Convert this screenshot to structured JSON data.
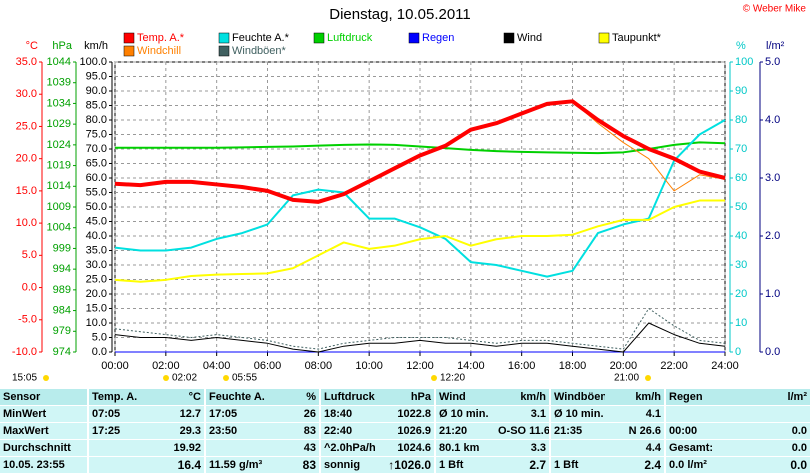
{
  "chart_data": {
    "type": "line",
    "title": "Dienstag, 10.05.2011",
    "copyright": "© Weber Mike",
    "x": [
      0,
      1,
      2,
      3,
      4,
      5,
      6,
      7,
      8,
      9,
      10,
      11,
      12,
      13,
      14,
      15,
      16,
      17,
      18,
      19,
      20,
      21,
      22,
      23,
      24
    ],
    "xlim": [
      0,
      24
    ],
    "xticks": [
      {
        "value": 0,
        "label": "00:00"
      },
      {
        "value": 2,
        "label": "02:00"
      },
      {
        "value": 4,
        "label": "04:00"
      },
      {
        "value": 6,
        "label": "06:00"
      },
      {
        "value": 8,
        "label": "08:00"
      },
      {
        "value": 10,
        "label": "10:00"
      },
      {
        "value": 12,
        "label": "12:00"
      },
      {
        "value": 14,
        "label": "14:00"
      },
      {
        "value": 16,
        "label": "16:00"
      },
      {
        "value": 18,
        "label": "18:00"
      },
      {
        "value": 20,
        "label": "20:00"
      },
      {
        "value": 22,
        "label": "22:00"
      },
      {
        "value": 24,
        "label": "24:00"
      }
    ],
    "grid": true,
    "axes": [
      {
        "label": "°C",
        "color": "#ff0000",
        "lim": [
          -10,
          35
        ],
        "ticks": [
          {
            "value": -10,
            "label": "-10.0"
          },
          {
            "value": -5,
            "label": "-5.0"
          },
          {
            "value": 0,
            "label": "0.0"
          },
          {
            "value": 5,
            "label": "5.0"
          },
          {
            "value": 10,
            "label": "10.0"
          },
          {
            "value": 15,
            "label": "15.0"
          },
          {
            "value": 20,
            "label": "20.0"
          },
          {
            "value": 25,
            "label": "25.0"
          },
          {
            "value": 30,
            "label": "30.0"
          },
          {
            "value": 35,
            "label": "35.0"
          }
        ]
      },
      {
        "label": "hPa",
        "color": "#00a000",
        "lim": [
          974,
          1044
        ],
        "ticks": [
          974,
          979,
          984,
          989,
          994,
          999,
          1004,
          1009,
          1014,
          1019,
          1024,
          1029,
          1034,
          1039,
          1044
        ]
      },
      {
        "label": "km/h",
        "color": "#000000",
        "lim": [
          0,
          100
        ],
        "grid": true,
        "ticks": [
          {
            "value": 0,
            "label": "0.0"
          },
          {
            "value": 5,
            "label": "5.0"
          },
          {
            "value": 10,
            "label": "10.0"
          },
          {
            "value": 15,
            "label": "15.0"
          },
          {
            "value": 20,
            "label": "20.0"
          },
          {
            "value": 25,
            "label": "25.0"
          },
          {
            "value": 30,
            "label": "30.0"
          },
          {
            "value": 35,
            "label": "35.0"
          },
          {
            "value": 40,
            "label": "40.0"
          },
          {
            "value": 45,
            "label": "45.0"
          },
          {
            "value": 50,
            "label": "50.0"
          },
          {
            "value": 55,
            "label": "55.0"
          },
          {
            "value": 60,
            "label": "60.0"
          },
          {
            "value": 65,
            "label": "65.0"
          },
          {
            "value": 70,
            "label": "70.0"
          },
          {
            "value": 75,
            "label": "75.0"
          },
          {
            "value": 80,
            "label": "80.0"
          },
          {
            "value": 85,
            "label": "85.0"
          },
          {
            "value": 90,
            "label": "90.0"
          },
          {
            "value": 95,
            "label": "95.0"
          },
          {
            "value": 100,
            "label": "100.0"
          }
        ]
      },
      {
        "label": "%",
        "color": "#00c8c8",
        "lim": [
          0,
          100
        ],
        "ticks": [
          0,
          10,
          20,
          30,
          40,
          50,
          60,
          70,
          80,
          90,
          100
        ]
      },
      {
        "label": "l/m²",
        "color": "#000080",
        "lim": [
          0,
          5
        ],
        "ticks": [
          {
            "value": 0,
            "label": "0.0"
          },
          {
            "value": 1,
            "label": "1.0"
          },
          {
            "value": 2,
            "label": "2.0"
          },
          {
            "value": 3,
            "label": "3.0"
          },
          {
            "value": 4,
            "label": "4.0"
          },
          {
            "value": 5,
            "label": "5.0"
          }
        ]
      }
    ],
    "series": [
      {
        "name": "Temp. A.*",
        "color": "#ff0000",
        "axis": 0,
        "width": 4,
        "values": [
          16.1,
          15.9,
          16.4,
          16.4,
          16.0,
          15.6,
          15.0,
          13.6,
          13.3,
          14.5,
          16.5,
          18.5,
          20.5,
          22.0,
          24.5,
          25.5,
          27.0,
          28.5,
          28.9,
          26.0,
          23.5,
          21.5,
          20.0,
          18.0,
          17.0
        ]
      },
      {
        "name": "Feuchte A.*",
        "color": "#00e0e0",
        "axis": 3,
        "width": 2,
        "values": [
          36,
          35,
          35,
          36,
          39,
          41,
          44,
          54,
          56,
          55,
          46,
          46,
          43,
          39,
          31,
          30,
          28,
          26,
          28,
          41,
          44,
          46,
          66,
          75,
          80
        ]
      },
      {
        "name": "Luftdruck",
        "color": "#00d000",
        "axis": 1,
        "width": 2,
        "values": [
          1023.3,
          1023.3,
          1023.3,
          1023.3,
          1023.3,
          1023.4,
          1023.5,
          1023.6,
          1023.8,
          1024.0,
          1024.1,
          1024.0,
          1023.6,
          1023.2,
          1022.8,
          1022.5,
          1022.3,
          1022.2,
          1022.1,
          1022.0,
          1022.2,
          1023.0,
          1024.0,
          1024.6,
          1024.4
        ]
      },
      {
        "name": "Regen",
        "color": "#0000ff",
        "axis": 4,
        "width": 1,
        "values": [
          0,
          0,
          0,
          0,
          0,
          0,
          0,
          0,
          0,
          0,
          0,
          0,
          0,
          0,
          0,
          0,
          0,
          0,
          0,
          0,
          0,
          0,
          0,
          0,
          0
        ]
      },
      {
        "name": "Wind",
        "color": "#000000",
        "axis": 2,
        "width": 1,
        "values": [
          6,
          5,
          5,
          4,
          5,
          4,
          3,
          1,
          0,
          2,
          3,
          3,
          4,
          3,
          3,
          2,
          3,
          3,
          2,
          1,
          0,
          10,
          6,
          3,
          2
        ]
      },
      {
        "name": "Taupunkt*",
        "color": "#ffff00",
        "axis": 0,
        "width": 2,
        "values": [
          1.2,
          0.9,
          1.2,
          1.8,
          2.0,
          2.1,
          2.2,
          3.0,
          5.0,
          7.0,
          6.0,
          6.5,
          7.5,
          8.0,
          6.5,
          7.5,
          8.0,
          8.0,
          8.2,
          9.5,
          10.5,
          10.5,
          12.5,
          13.5,
          13.5
        ]
      },
      {
        "name": "Windchill",
        "color": "#ff8000",
        "axis": 0,
        "width": 1,
        "values": [
          16.1,
          15.9,
          16.4,
          16.4,
          16.0,
          15.6,
          15.0,
          13.6,
          13.3,
          14.5,
          16.5,
          18.5,
          20.5,
          22.0,
          24.5,
          25.5,
          27.0,
          28.5,
          28.9,
          25.5,
          22.5,
          20.0,
          15.0,
          17.5,
          16.8
        ]
      },
      {
        "name": "Windböen*",
        "color": "#406060",
        "axis": 2,
        "width": 1,
        "dashed": true,
        "values": [
          8,
          7,
          6,
          5,
          6,
          5,
          4,
          2,
          1,
          3,
          4,
          5,
          5,
          5,
          4,
          3,
          4,
          4,
          3,
          2,
          1,
          15,
          9,
          4,
          3
        ]
      }
    ],
    "events": [
      "15:05",
      "02:02",
      "05:55",
      "12:20",
      "21:00"
    ]
  },
  "table": {
    "rows": [
      [
        "Sensor",
        "Temp. A.",
        "°C",
        "Feuchte A.",
        "%",
        "Luftdruck",
        "hPa",
        "Wind",
        "km/h",
        "Windböen",
        "km/h",
        "Regen",
        "l/m²"
      ],
      [
        "MinWert",
        "07:05",
        "12.7",
        "17:05",
        "26",
        "18:40",
        "1022.8",
        "Ø 10 min.",
        "3.1",
        "Ø 10 min.",
        "4.1",
        "",
        ""
      ],
      [
        "MaxWert",
        "17:25",
        "29.3",
        "23:50",
        "83",
        "22:40",
        "1026.9",
        "21:20",
        "O-SO 11.6",
        "21:35",
        "N 26.6",
        "00:00",
        "0.0"
      ],
      [
        "Durchschnitt",
        "",
        "19.92",
        "",
        "43",
        "^2.0hPa/h",
        "1024.6",
        "80.1 km",
        "3.3",
        "",
        "4.4",
        "Gesamt:",
        "0.0"
      ],
      [
        "10.05. 23:55",
        "",
        "16.4",
        "11.59 g/m³",
        "83",
        "sonnig",
        "↑1026.0",
        "1 Bft",
        "2.7",
        "1 Bft",
        "2.4",
        "0.0 l/m²",
        "0.0"
      ]
    ]
  }
}
